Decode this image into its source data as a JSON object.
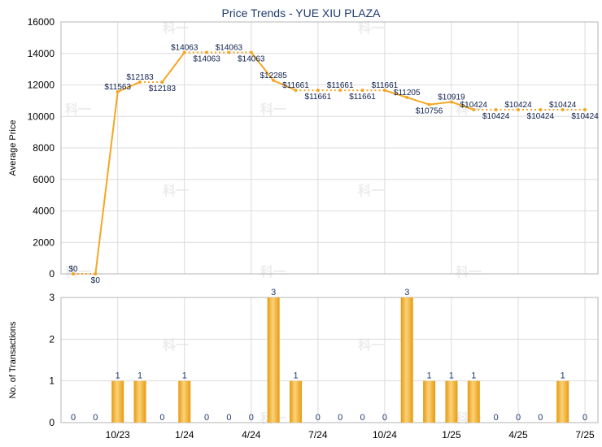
{
  "chart_data": [
    {
      "type": "line",
      "title": "Price Trends - YUE XIU PLAZA",
      "ylabel": "Average Price",
      "ylim": [
        0,
        16000
      ],
      "yticks": [
        "0",
        "2000",
        "4000",
        "6000",
        "8000",
        "10000",
        "12000",
        "14000",
        "16000"
      ],
      "grid": true,
      "color": "#f5a623",
      "series": [
        {
          "values": [
            0,
            0,
            11563,
            12183,
            12183,
            14063,
            14063,
            14063,
            14063,
            12285,
            11661,
            11661,
            11661,
            11661,
            11661,
            11205,
            10756,
            10919,
            10424,
            10424,
            10424,
            10424,
            10424,
            10424
          ],
          "labels": [
            "$0",
            "$0",
            "$11563",
            "$12183",
            "$12183",
            "$14063",
            "$14063",
            "$14063",
            "$14063",
            "$12285",
            "$11661",
            "$11661",
            "$11661",
            "$11661",
            "$11661",
            "$11205",
            "$10756",
            "$10919",
            "$10424",
            "$10424",
            "$10424",
            "$10424",
            "$10424",
            "$10424"
          ]
        }
      ]
    },
    {
      "type": "bar",
      "ylabel": "No. of Transactions",
      "ylim": [
        0,
        3
      ],
      "yticks": [
        "0",
        "1",
        "2",
        "3"
      ],
      "grid": true,
      "color": "#f5a623",
      "values": [
        0,
        0,
        1,
        1,
        0,
        1,
        0,
        0,
        0,
        3,
        1,
        0,
        0,
        0,
        0,
        3,
        1,
        1,
        1,
        0,
        0,
        0,
        1,
        0
      ],
      "labels": [
        "0",
        "0",
        "1",
        "1",
        "0",
        "1",
        "0",
        "0",
        "0",
        "3",
        "1",
        "0",
        "0",
        "0",
        "0",
        "3",
        "1",
        "1",
        "1",
        "0",
        "0",
        "0",
        "1",
        "0"
      ]
    }
  ],
  "x_axis": {
    "tick_labels": [
      "10/23",
      "1/24",
      "4/24",
      "7/24",
      "10/24",
      "1/25",
      "4/25",
      "7/25"
    ],
    "tick_index": [
      2,
      5,
      8,
      11,
      14,
      17,
      20,
      23
    ]
  },
  "watermark": "科一"
}
